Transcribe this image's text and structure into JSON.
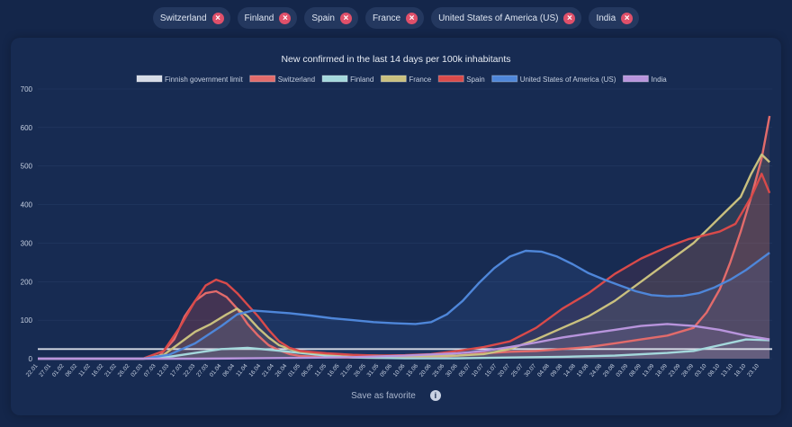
{
  "chips": [
    {
      "label": "Switzerland"
    },
    {
      "label": "Finland"
    },
    {
      "label": "Spain"
    },
    {
      "label": "France"
    },
    {
      "label": "United States of America (US)"
    },
    {
      "label": "India"
    }
  ],
  "footer": {
    "save_label": "Save as favorite"
  },
  "chart_data": {
    "type": "line",
    "title": "New confirmed in the last 14 days per 100k inhabitants",
    "xlabel": "",
    "ylabel": "",
    "ylim": [
      0,
      700
    ],
    "yticks": [
      0,
      100,
      200,
      300,
      400,
      500,
      600,
      700
    ],
    "x_tick_labels": [
      "22.01",
      "27.01",
      "01.02",
      "06.02",
      "11.02",
      "16.02",
      "21.02",
      "26.02",
      "02.03",
      "07.03",
      "12.03",
      "17.03",
      "22.03",
      "27.03",
      "01.04",
      "06.04",
      "11.04",
      "16.04",
      "21.04",
      "26.04",
      "01.05",
      "06.05",
      "11.05",
      "16.05",
      "21.05",
      "26.05",
      "31.05",
      "05.06",
      "10.06",
      "15.06",
      "20.06",
      "25.06",
      "30.06",
      "05.07",
      "10.07",
      "15.07",
      "20.07",
      "25.07",
      "30.07",
      "04.08",
      "09.08",
      "14.08",
      "19.08",
      "24.08",
      "29.08",
      "03.09",
      "08.09",
      "13.09",
      "18.09",
      "23.09",
      "28.09",
      "03.10",
      "08.10",
      "13.10",
      "18.10",
      "23.10"
    ],
    "x_index_of_labels": [
      0,
      5,
      10,
      15,
      20,
      25,
      30,
      35,
      40,
      45,
      50,
      55,
      60,
      65,
      70,
      75,
      80,
      85,
      90,
      95,
      100,
      105,
      110,
      115,
      120,
      125,
      130,
      135,
      140,
      145,
      150,
      155,
      160,
      165,
      170,
      175,
      180,
      185,
      190,
      195,
      200,
      205,
      210,
      215,
      220,
      225,
      230,
      235,
      240,
      245,
      250,
      255,
      260,
      265,
      270,
      275
    ],
    "x_range_days": [
      0,
      280
    ],
    "legend_position": "top",
    "series": [
      {
        "name": "Finnish government limit",
        "color": "#d6dbe6",
        "points": [
          [
            0,
            25
          ],
          [
            280,
            25
          ]
        ]
      },
      {
        "name": "Switzerland",
        "color": "#e26b6b",
        "points": [
          [
            0,
            0
          ],
          [
            40,
            0
          ],
          [
            46,
            5
          ],
          [
            52,
            50
          ],
          [
            56,
            110
          ],
          [
            60,
            150
          ],
          [
            64,
            170
          ],
          [
            68,
            175
          ],
          [
            72,
            160
          ],
          [
            76,
            130
          ],
          [
            80,
            90
          ],
          [
            84,
            60
          ],
          [
            88,
            35
          ],
          [
            92,
            22
          ],
          [
            96,
            12
          ],
          [
            100,
            7
          ],
          [
            110,
            4
          ],
          [
            130,
            2
          ],
          [
            150,
            4
          ],
          [
            160,
            8
          ],
          [
            170,
            14
          ],
          [
            180,
            18
          ],
          [
            190,
            20
          ],
          [
            200,
            25
          ],
          [
            210,
            30
          ],
          [
            220,
            40
          ],
          [
            230,
            50
          ],
          [
            240,
            60
          ],
          [
            250,
            80
          ],
          [
            255,
            120
          ],
          [
            260,
            180
          ],
          [
            264,
            250
          ],
          [
            268,
            330
          ],
          [
            272,
            420
          ],
          [
            276,
            520
          ],
          [
            279,
            630
          ]
        ]
      },
      {
        "name": "Finland",
        "color": "#a4d8dc",
        "points": [
          [
            0,
            0
          ],
          [
            40,
            0
          ],
          [
            50,
            5
          ],
          [
            60,
            15
          ],
          [
            70,
            25
          ],
          [
            80,
            28
          ],
          [
            90,
            22
          ],
          [
            100,
            15
          ],
          [
            110,
            8
          ],
          [
            120,
            3
          ],
          [
            140,
            1
          ],
          [
            160,
            1
          ],
          [
            180,
            3
          ],
          [
            200,
            5
          ],
          [
            220,
            8
          ],
          [
            240,
            15
          ],
          [
            250,
            20
          ],
          [
            260,
            35
          ],
          [
            270,
            50
          ],
          [
            279,
            48
          ]
        ]
      },
      {
        "name": "France",
        "color": "#c9c07f",
        "points": [
          [
            0,
            0
          ],
          [
            40,
            0
          ],
          [
            48,
            10
          ],
          [
            54,
            40
          ],
          [
            60,
            70
          ],
          [
            66,
            90
          ],
          [
            72,
            115
          ],
          [
            76,
            130
          ],
          [
            80,
            110
          ],
          [
            84,
            80
          ],
          [
            88,
            55
          ],
          [
            92,
            35
          ],
          [
            96,
            25
          ],
          [
            100,
            18
          ],
          [
            110,
            12
          ],
          [
            120,
            9
          ],
          [
            140,
            7
          ],
          [
            160,
            8
          ],
          [
            170,
            12
          ],
          [
            180,
            25
          ],
          [
            190,
            50
          ],
          [
            200,
            80
          ],
          [
            210,
            110
          ],
          [
            220,
            150
          ],
          [
            230,
            200
          ],
          [
            240,
            250
          ],
          [
            250,
            300
          ],
          [
            256,
            340
          ],
          [
            262,
            380
          ],
          [
            268,
            420
          ],
          [
            272,
            480
          ],
          [
            276,
            530
          ],
          [
            279,
            510
          ]
        ]
      },
      {
        "name": "Spain",
        "color": "#d94a4a",
        "points": [
          [
            0,
            0
          ],
          [
            40,
            0
          ],
          [
            48,
            20
          ],
          [
            54,
            80
          ],
          [
            60,
            150
          ],
          [
            64,
            190
          ],
          [
            68,
            205
          ],
          [
            72,
            195
          ],
          [
            76,
            170
          ],
          [
            80,
            140
          ],
          [
            84,
            110
          ],
          [
            88,
            75
          ],
          [
            92,
            45
          ],
          [
            96,
            28
          ],
          [
            100,
            20
          ],
          [
            110,
            14
          ],
          [
            120,
            10
          ],
          [
            130,
            8
          ],
          [
            140,
            9
          ],
          [
            150,
            12
          ],
          [
            160,
            20
          ],
          [
            170,
            30
          ],
          [
            180,
            45
          ],
          [
            190,
            80
          ],
          [
            200,
            130
          ],
          [
            210,
            170
          ],
          [
            220,
            220
          ],
          [
            230,
            260
          ],
          [
            240,
            290
          ],
          [
            248,
            310
          ],
          [
            254,
            320
          ],
          [
            260,
            330
          ],
          [
            266,
            350
          ],
          [
            272,
            420
          ],
          [
            276,
            480
          ],
          [
            279,
            430
          ]
        ]
      },
      {
        "name": "United States of America (US)",
        "color": "#4e86d9",
        "points": [
          [
            0,
            0
          ],
          [
            40,
            0
          ],
          [
            50,
            10
          ],
          [
            60,
            40
          ],
          [
            70,
            85
          ],
          [
            76,
            115
          ],
          [
            82,
            125
          ],
          [
            88,
            122
          ],
          [
            96,
            118
          ],
          [
            104,
            112
          ],
          [
            112,
            105
          ],
          [
            120,
            100
          ],
          [
            128,
            95
          ],
          [
            136,
            92
          ],
          [
            144,
            90
          ],
          [
            150,
            95
          ],
          [
            156,
            115
          ],
          [
            162,
            150
          ],
          [
            168,
            195
          ],
          [
            174,
            235
          ],
          [
            180,
            265
          ],
          [
            186,
            280
          ],
          [
            192,
            278
          ],
          [
            198,
            265
          ],
          [
            204,
            245
          ],
          [
            210,
            222
          ],
          [
            216,
            205
          ],
          [
            222,
            190
          ],
          [
            228,
            175
          ],
          [
            234,
            165
          ],
          [
            240,
            162
          ],
          [
            246,
            163
          ],
          [
            252,
            170
          ],
          [
            258,
            185
          ],
          [
            264,
            205
          ],
          [
            270,
            230
          ],
          [
            275,
            255
          ],
          [
            279,
            275
          ]
        ]
      },
      {
        "name": "India",
        "color": "#b894dc",
        "points": [
          [
            0,
            0
          ],
          [
            60,
            0
          ],
          [
            80,
            1
          ],
          [
            100,
            2
          ],
          [
            120,
            4
          ],
          [
            140,
            8
          ],
          [
            160,
            14
          ],
          [
            170,
            20
          ],
          [
            180,
            30
          ],
          [
            190,
            42
          ],
          [
            200,
            55
          ],
          [
            210,
            65
          ],
          [
            220,
            75
          ],
          [
            230,
            85
          ],
          [
            240,
            90
          ],
          [
            250,
            85
          ],
          [
            260,
            75
          ],
          [
            270,
            60
          ],
          [
            279,
            50
          ]
        ]
      }
    ]
  }
}
